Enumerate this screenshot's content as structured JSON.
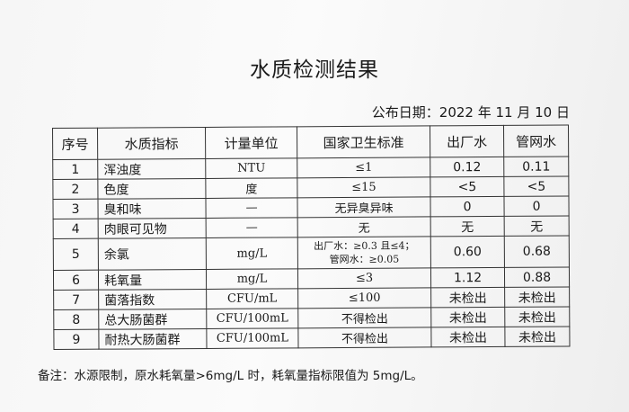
{
  "title": "水质检测结果",
  "publish_date": "公布日期：2022 年 11 月 10 日",
  "table": {
    "headers": [
      "序号",
      "水质指标",
      "计量单位",
      "国家卫生标准",
      "出厂水",
      "管网水"
    ],
    "rows": [
      {
        "no": "1",
        "item": "浑浊度",
        "unit": "NTU",
        "standard": "≤1",
        "factory": "0.12",
        "network": "0.11"
      },
      {
        "no": "2",
        "item": "色度",
        "unit": "度",
        "standard": "≤15",
        "factory": "<5",
        "network": "<5"
      },
      {
        "no": "3",
        "item": "臭和味",
        "unit": "—",
        "standard": "无异臭异味",
        "factory": "0",
        "network": "0"
      },
      {
        "no": "4",
        "item": "肉眼可见物",
        "unit": "—",
        "standard": "无",
        "factory": "无",
        "network": "无"
      },
      {
        "no": "5",
        "item": "余氯",
        "unit": "mg/L",
        "standard": "出厂水：≥0.3 且≤4；",
        "standard2": "管网水：≥0.05",
        "factory": "0.60",
        "network": "0.68"
      },
      {
        "no": "6",
        "item": "耗氧量",
        "unit": "mg/L",
        "standard": "≤3",
        "factory": "1.12",
        "network": "0.88"
      },
      {
        "no": "7",
        "item": "菌落指数",
        "unit": "CFU/mL",
        "standard": "≤100",
        "factory": "未检出",
        "network": "未检出"
      },
      {
        "no": "8",
        "item": "总大肠菌群",
        "unit": "CFU/100mL",
        "standard": "不得检出",
        "factory": "未检出",
        "network": "未检出"
      },
      {
        "no": "9",
        "item": "耐热大肠菌群",
        "unit": "CFU/100mL",
        "standard": "不得检出",
        "factory": "未检出",
        "network": "未检出"
      }
    ]
  },
  "note": "备注：水源限制，原水耗氧量>6mg/L 时，耗氧量指标限值为 5mg/L。"
}
